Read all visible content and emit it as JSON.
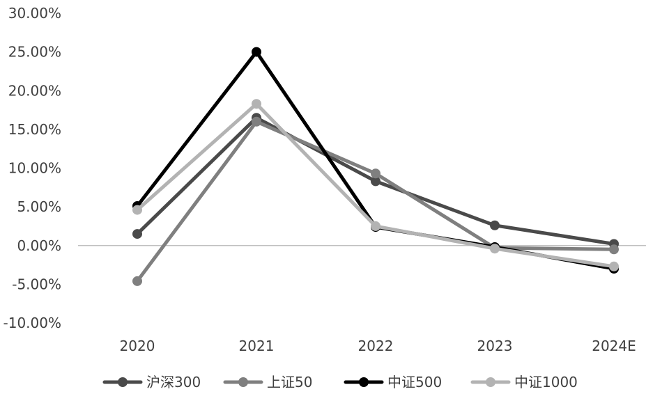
{
  "chart_data": {
    "type": "line",
    "categories": [
      "2020",
      "2021",
      "2022",
      "2023",
      "2024E"
    ],
    "y_ticks": [
      "30.00%",
      "25.00%",
      "20.00%",
      "15.00%",
      "10.00%",
      "5.00%",
      "0.00%",
      "-5.00%",
      "-10.00%"
    ],
    "ylim": [
      -10,
      30
    ],
    "grid": false,
    "legend_position": "bottom",
    "series": [
      {
        "name": "沪深300",
        "color": "#4a4a4a",
        "values": [
          1.5,
          16.5,
          8.3,
          2.6,
          0.2
        ]
      },
      {
        "name": "上证50",
        "color": "#7f7f7f",
        "values": [
          -4.6,
          16.0,
          9.3,
          -0.3,
          -0.5
        ]
      },
      {
        "name": "中证500",
        "color": "#000000",
        "values": [
          5.1,
          25.0,
          2.4,
          -0.2,
          -3.0
        ]
      },
      {
        "name": "中证1000",
        "color": "#b3b3b3",
        "values": [
          4.6,
          18.3,
          2.5,
          -0.4,
          -2.7
        ]
      }
    ]
  }
}
